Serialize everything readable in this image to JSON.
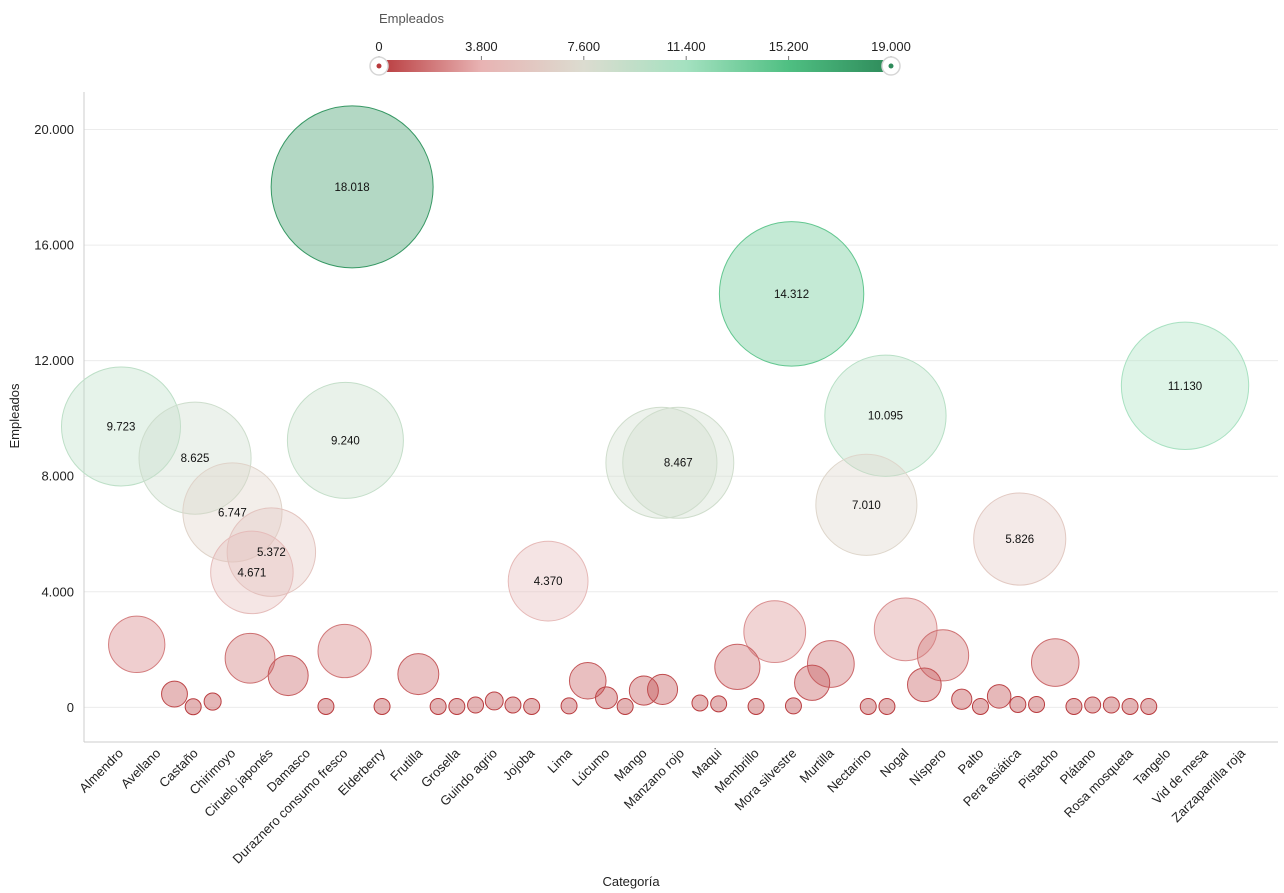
{
  "legend": {
    "title": "Empleados",
    "ticks": [
      "0",
      "3.800",
      "7.600",
      "11.400",
      "15.200",
      "19.000"
    ],
    "colors": [
      "#b8393c",
      "#e8b3b3",
      "#dcdcd0",
      "#a4e1c0",
      "#4fbf82",
      "#2e8a5a"
    ]
  },
  "chart_data": {
    "type": "scatter",
    "encoding": "bubble",
    "x_categories": [
      "Almendro",
      "Avellano",
      "Castaño",
      "Chirimoyo",
      "Ciruelo japonés",
      "Damasco",
      "Duraznero consumo fresco",
      "Elderberry",
      "Frutilla",
      "Grosella",
      "Guindo agrio",
      "Jojoba",
      "Lima",
      "Lúcumo",
      "Mango",
      "Manzano rojo",
      "Maqui",
      "Membrillo",
      "Mora silvestre",
      "Murtilla",
      "Nectarino",
      "Nogal",
      "Níspero",
      "Palto",
      "Pera asiática",
      "Pistacho",
      "Plátano",
      "Rosa mosqueta",
      "Tangelo",
      "Vid de mesa",
      "Zarzaparrilla roja"
    ],
    "xlabel": "Categoría",
    "ylabel": "Empleados",
    "yticks": [
      "0",
      "4.000",
      "8.000",
      "12.000",
      "16.000",
      "20.000"
    ],
    "ylim": [
      -1200,
      21300
    ],
    "grid": true,
    "color_scale_domain": [
      0,
      19000
    ],
    "points": [
      {
        "x": 0.0,
        "y": 9723,
        "label": "9.723"
      },
      {
        "x": 1.98,
        "y": 8625,
        "label": "8.625"
      },
      {
        "x": 2.98,
        "y": 6747,
        "label": "6.747"
      },
      {
        "x": 3.5,
        "y": 4671,
        "label": "4.671"
      },
      {
        "x": 4.02,
        "y": 5372,
        "label": "5.372"
      },
      {
        "x": 6.0,
        "y": 9240,
        "label": "9.240"
      },
      {
        "x": 6.18,
        "y": 18018,
        "label": "18.018"
      },
      {
        "x": 11.42,
        "y": 4370,
        "label": "4.370"
      },
      {
        "x": 14.45,
        "y": 8467,
        "label": ""
      },
      {
        "x": 14.9,
        "y": 8467,
        "label": "8.467"
      },
      {
        "x": 17.93,
        "y": 14312,
        "label": "14.312"
      },
      {
        "x": 19.93,
        "y": 7010,
        "label": "7.010"
      },
      {
        "x": 20.44,
        "y": 10095,
        "label": "10.095"
      },
      {
        "x": 24.03,
        "y": 5826,
        "label": "5.826"
      },
      {
        "x": 28.45,
        "y": 11130,
        "label": "11.130"
      },
      {
        "x": 0.42,
        "y": 2180,
        "label": ""
      },
      {
        "x": 1.43,
        "y": 460,
        "label": ""
      },
      {
        "x": 1.93,
        "y": 20,
        "label": ""
      },
      {
        "x": 2.45,
        "y": 200,
        "label": ""
      },
      {
        "x": 3.45,
        "y": 1700,
        "label": ""
      },
      {
        "x": 4.47,
        "y": 1100,
        "label": ""
      },
      {
        "x": 5.48,
        "y": 30,
        "label": ""
      },
      {
        "x": 5.98,
        "y": 1950,
        "label": ""
      },
      {
        "x": 6.98,
        "y": 30,
        "label": ""
      },
      {
        "x": 7.95,
        "y": 1150,
        "label": ""
      },
      {
        "x": 8.48,
        "y": 30,
        "label": ""
      },
      {
        "x": 8.98,
        "y": 30,
        "label": ""
      },
      {
        "x": 9.48,
        "y": 80,
        "label": ""
      },
      {
        "x": 9.98,
        "y": 220,
        "label": ""
      },
      {
        "x": 10.48,
        "y": 80,
        "label": ""
      },
      {
        "x": 10.98,
        "y": 30,
        "label": ""
      },
      {
        "x": 11.98,
        "y": 50,
        "label": ""
      },
      {
        "x": 12.48,
        "y": 920,
        "label": ""
      },
      {
        "x": 12.98,
        "y": 330,
        "label": ""
      },
      {
        "x": 13.48,
        "y": 30,
        "label": ""
      },
      {
        "x": 13.98,
        "y": 580,
        "label": ""
      },
      {
        "x": 14.48,
        "y": 620,
        "label": ""
      },
      {
        "x": 15.48,
        "y": 150,
        "label": ""
      },
      {
        "x": 15.98,
        "y": 120,
        "label": ""
      },
      {
        "x": 16.48,
        "y": 1400,
        "label": ""
      },
      {
        "x": 16.98,
        "y": 30,
        "label": ""
      },
      {
        "x": 17.48,
        "y": 2620,
        "label": ""
      },
      {
        "x": 17.98,
        "y": 50,
        "label": ""
      },
      {
        "x": 18.48,
        "y": 850,
        "label": ""
      },
      {
        "x": 18.98,
        "y": 1500,
        "label": ""
      },
      {
        "x": 19.98,
        "y": 30,
        "label": ""
      },
      {
        "x": 20.48,
        "y": 30,
        "label": ""
      },
      {
        "x": 20.98,
        "y": 2700,
        "label": ""
      },
      {
        "x": 21.48,
        "y": 780,
        "label": ""
      },
      {
        "x": 21.98,
        "y": 1800,
        "label": ""
      },
      {
        "x": 22.48,
        "y": 280,
        "label": ""
      },
      {
        "x": 22.98,
        "y": 30,
        "label": ""
      },
      {
        "x": 23.48,
        "y": 380,
        "label": ""
      },
      {
        "x": 23.98,
        "y": 100,
        "label": ""
      },
      {
        "x": 24.48,
        "y": 100,
        "label": ""
      },
      {
        "x": 24.98,
        "y": 1550,
        "label": ""
      },
      {
        "x": 25.48,
        "y": 30,
        "label": ""
      },
      {
        "x": 25.98,
        "y": 80,
        "label": ""
      },
      {
        "x": 26.48,
        "y": 80,
        "label": ""
      },
      {
        "x": 26.98,
        "y": 30,
        "label": ""
      },
      {
        "x": 27.48,
        "y": 30,
        "label": ""
      }
    ]
  }
}
